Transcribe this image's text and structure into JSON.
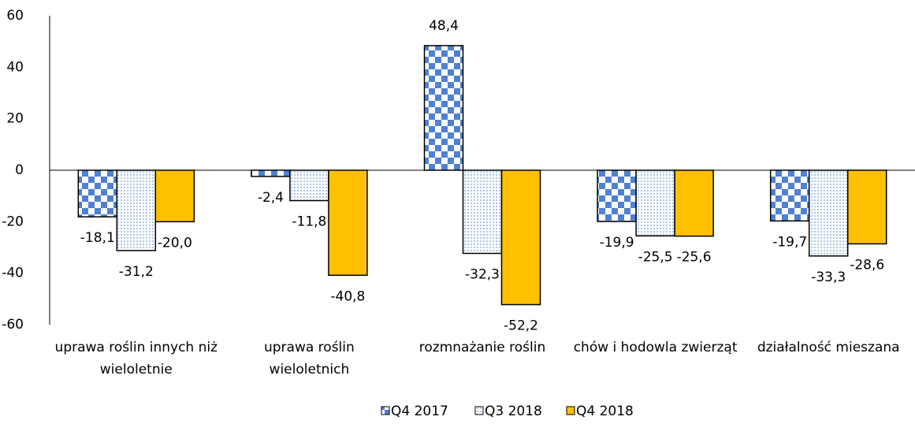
{
  "chart_data": {
    "type": "bar",
    "categories": [
      "uprawa roślin innych niż wieloletnie",
      "uprawa roślin wieloletnich",
      "rozmnażanie roślin",
      "chów i hodowla zwierząt",
      "działalność mieszana"
    ],
    "series": [
      {
        "name": "Q4 2017",
        "color": "#4f81d3",
        "pattern": "checker",
        "values": [
          -18.1,
          -2.4,
          48.4,
          -19.9,
          -19.7
        ],
        "value_labels": [
          "-18,1",
          "-2,4",
          "48,4",
          "-19,9",
          "-19,7"
        ]
      },
      {
        "name": "Q3 2018",
        "color": "#8eb4e3",
        "pattern": "dots",
        "values": [
          -31.2,
          -11.8,
          -32.3,
          -25.5,
          -33.3
        ],
        "value_labels": [
          "-31,2",
          "-11,8",
          "-32,3",
          "-25,5",
          "-33,3"
        ]
      },
      {
        "name": "Q4 2018",
        "color": "#ffc000",
        "pattern": "solid",
        "values": [
          -20.0,
          -40.8,
          -52.2,
          -25.6,
          -28.6
        ],
        "value_labels": [
          "-20,0",
          "-40,8",
          "-52,2",
          "-25,6",
          "-28,6"
        ]
      }
    ],
    "ylim": [
      -60,
      60
    ],
    "yticks": [
      -60,
      -40,
      -20,
      0,
      20,
      40,
      60
    ],
    "legend": "bottom"
  }
}
